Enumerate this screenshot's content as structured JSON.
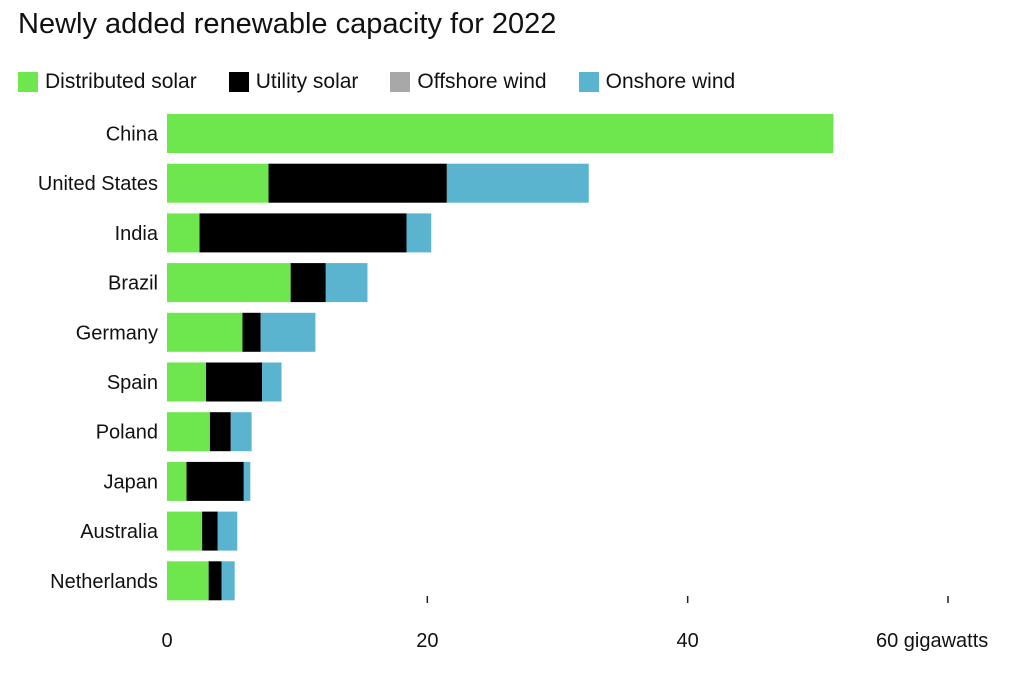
{
  "chart_data": {
    "type": "bar",
    "orientation": "horizontal",
    "stacked": true,
    "title": "Newly added renewable capacity for 2022",
    "xlabel": "",
    "ylabel": "",
    "unit": "gigawatts",
    "xlim": [
      0,
      60
    ],
    "xticks": [
      0,
      20,
      40,
      60
    ],
    "xtick_labels": [
      "0",
      "20",
      "40",
      "60 gigawatts"
    ],
    "grid": false,
    "legend_position": "top-left",
    "categories": [
      "China",
      "United States",
      "India",
      "Brazil",
      "Germany",
      "Spain",
      "Poland",
      "Japan",
      "Australia",
      "Netherlands"
    ],
    "series": [
      {
        "name": "Distributed solar",
        "color": "#6ee64e",
        "values": [
          51.2,
          7.8,
          2.5,
          9.5,
          5.8,
          3.0,
          3.3,
          1.5,
          2.7,
          3.2
        ]
      },
      {
        "name": "Utility solar",
        "color": "#000000",
        "values": [
          0,
          13.7,
          15.9,
          2.7,
          1.4,
          4.3,
          1.6,
          4.4,
          1.2,
          1.0
        ]
      },
      {
        "name": "Offshore wind",
        "color": "#a8a8a8",
        "values": [
          0,
          0,
          0,
          0,
          0,
          0,
          0,
          0,
          0,
          0
        ]
      },
      {
        "name": "Onshore wind",
        "color": "#5ab4d0",
        "values": [
          0,
          10.9,
          1.9,
          3.2,
          4.2,
          1.5,
          1.6,
          0.5,
          1.5,
          1.0
        ]
      }
    ]
  }
}
